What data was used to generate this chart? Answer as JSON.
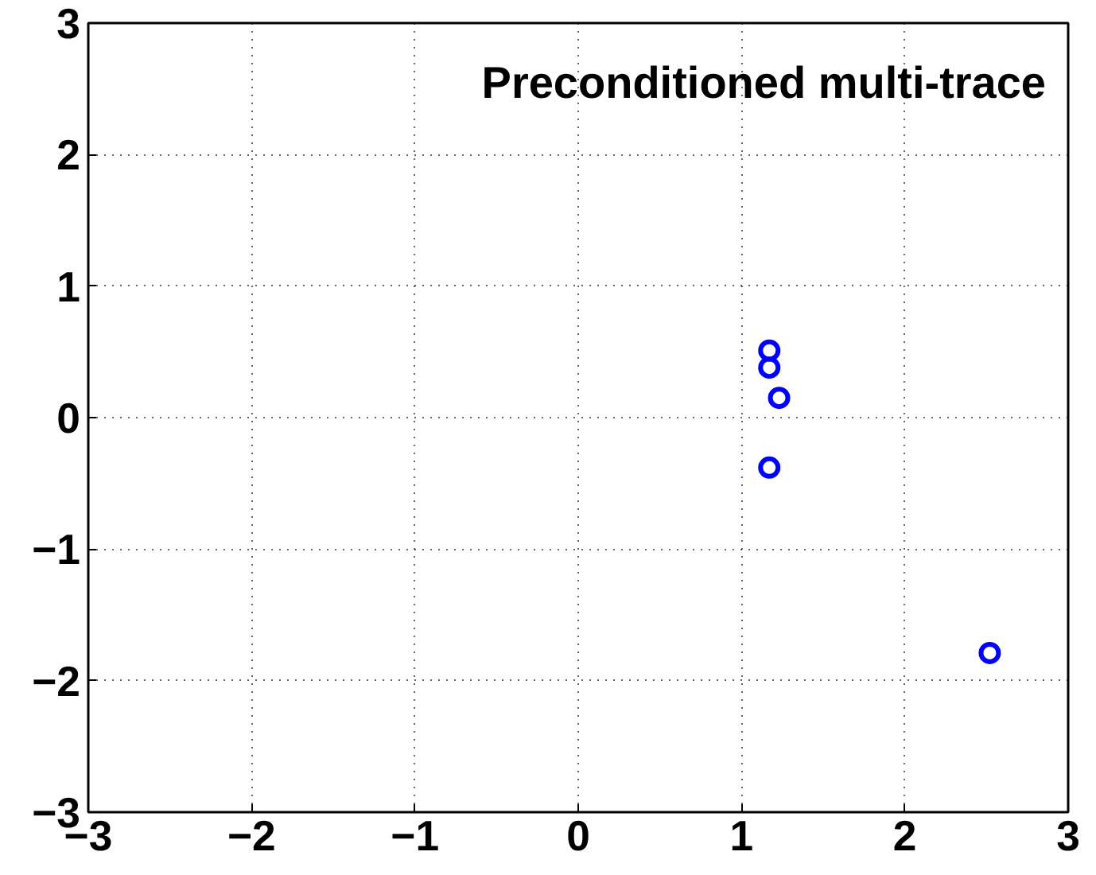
{
  "chart_data": {
    "type": "scatter",
    "title": "Preconditioned multi-trace",
    "x": [
      1.17,
      1.17,
      1.23,
      1.17,
      2.52
    ],
    "series": [
      {
        "color": "#0000ff",
        "values": [
          0.51,
          0.38,
          0.15,
          -0.38,
          -1.79
        ]
      }
    ],
    "xlim": [
      -3,
      3
    ],
    "ylim": [
      -3,
      3
    ],
    "xticks": [
      -3,
      -2,
      -1,
      0,
      1,
      2,
      3
    ],
    "yticks": [
      -3,
      -2,
      -1,
      0,
      1,
      2,
      3
    ],
    "grid": true,
    "marker": "circle"
  }
}
